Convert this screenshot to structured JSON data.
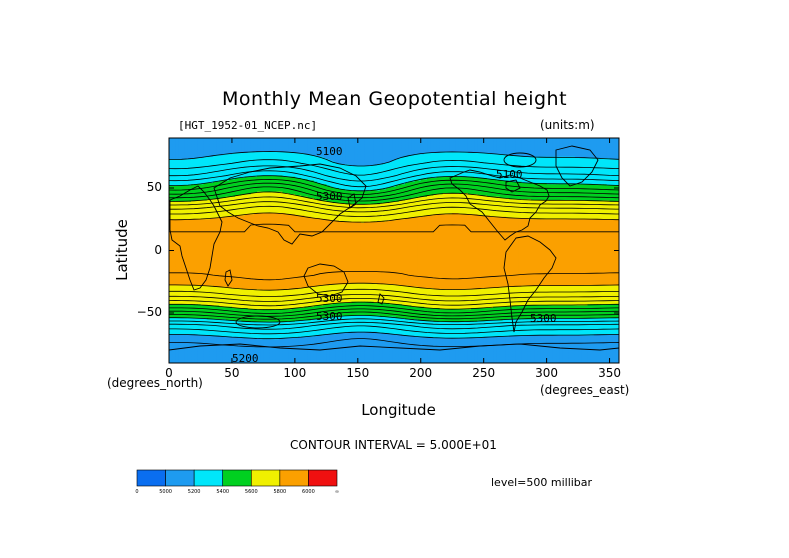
{
  "chart_data": {
    "type": "heatmap",
    "title": "Monthly Mean Geopotential height",
    "file_label": "[HGT_1952-01_NCEP.nc]",
    "units_label": "(units:m)",
    "xlabel": "Longitude",
    "ylabel": "Latitude",
    "x_unit_label": "(degrees_east)",
    "y_unit_label": "(degrees_north)",
    "xlim": [
      0,
      357.5
    ],
    "ylim": [
      -90,
      90
    ],
    "xticks": [
      "0",
      "50",
      "100",
      "150",
      "200",
      "250",
      "300",
      "350"
    ],
    "yticks": [
      "50",
      "0",
      "-50"
    ],
    "contour_interval_text": "CONTOUR INTERVAL = 5.000E+01",
    "level_text": "level=500 millibar",
    "contour_labels": [
      "5100",
      "5100",
      "5300",
      "5300",
      "5300",
      "5300",
      "5200"
    ],
    "zonal_profile": {
      "lat": [
        90,
        80,
        70,
        60,
        55,
        50,
        45,
        40,
        35,
        30,
        25,
        20,
        10,
        0,
        -10,
        -20,
        -25,
        -30,
        -35,
        -40,
        -45,
        -50,
        -55,
        -60,
        -70,
        -80,
        -90
      ],
      "height": [
        5150,
        5180,
        5230,
        5330,
        5400,
        5470,
        5540,
        5620,
        5700,
        5760,
        5810,
        5840,
        5860,
        5860,
        5860,
        5850,
        5830,
        5790,
        5740,
        5670,
        5590,
        5500,
        5400,
        5300,
        5180,
        5120,
        5100
      ]
    },
    "colorbar": {
      "colors": [
        "#0a6ef0",
        "#1e9bf0",
        "#00e6fa",
        "#00d020",
        "#f0f000",
        "#fba000",
        "#f01010"
      ],
      "labels": [
        "0",
        "5000",
        "5200",
        "5400",
        "5600",
        "5800",
        "6000",
        "∞"
      ]
    },
    "colors": {
      "frame": "#000000",
      "contour": "#000000",
      "land": "#000000"
    }
  }
}
